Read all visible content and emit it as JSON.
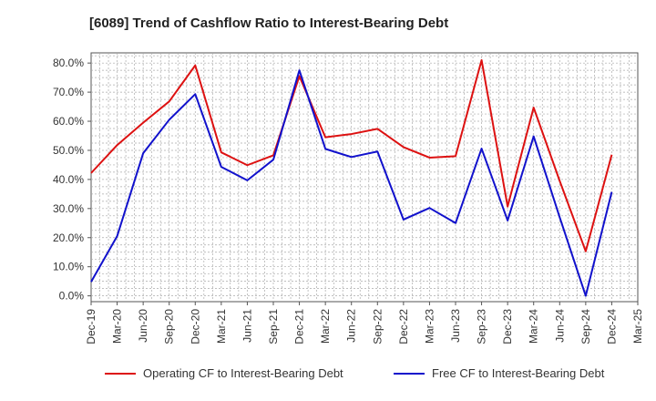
{
  "chart_data": {
    "type": "line",
    "title": "[6089]  Trend of Cashflow Ratio to Interest-Bearing Debt",
    "xlabel": "",
    "ylabel": "",
    "ylim": [
      -0.02,
      0.835
    ],
    "y_ticks": [
      0.0,
      0.1,
      0.2,
      0.3,
      0.4,
      0.5,
      0.6,
      0.7,
      0.8
    ],
    "y_tick_labels": [
      "0.0%",
      "10.0%",
      "20.0%",
      "30.0%",
      "40.0%",
      "50.0%",
      "60.0%",
      "70.0%",
      "80.0%"
    ],
    "categories": [
      "Dec-19",
      "Mar-20",
      "Jun-20",
      "Sep-20",
      "Dec-20",
      "Mar-21",
      "Jun-21",
      "Sep-21",
      "Dec-21",
      "Mar-22",
      "Jun-22",
      "Sep-22",
      "Dec-22",
      "Mar-23",
      "Jun-23",
      "Sep-23",
      "Dec-23",
      "Mar-24",
      "Jun-24",
      "Sep-24",
      "Dec-24",
      "Mar-25"
    ],
    "grid": true,
    "legend_position": "bottom",
    "series": [
      {
        "name": "Operating CF to Interest-Bearing Debt",
        "color": "#dd1111",
        "values": [
          0.422,
          0.518,
          0.595,
          0.668,
          0.792,
          0.493,
          0.449,
          0.483,
          0.755,
          0.545,
          0.556,
          0.574,
          0.511,
          0.475,
          0.48,
          0.81,
          0.307,
          0.647,
          0.395,
          0.153,
          0.485,
          null
        ]
      },
      {
        "name": "Free CF to Interest-Bearing Debt",
        "color": "#1111cc",
        "values": [
          0.048,
          0.205,
          0.49,
          0.605,
          0.693,
          0.443,
          0.397,
          0.468,
          0.775,
          0.505,
          0.477,
          0.496,
          0.262,
          0.302,
          0.25,
          0.506,
          0.259,
          0.548,
          0.27,
          0.0,
          0.357,
          null
        ]
      }
    ]
  }
}
